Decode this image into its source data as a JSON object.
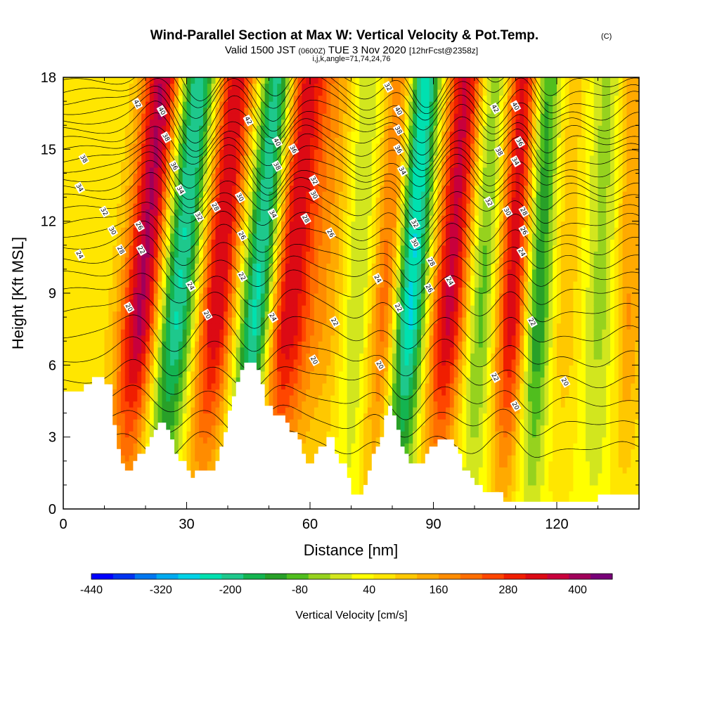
{
  "title": {
    "main": "Wind-Parallel Section at Max W: Vertical Velocity & Pot.Temp.",
    "main_suffix": "(C)",
    "valid_prefix": "Valid 1500 JST",
    "valid_z": "(0600Z)",
    "valid_date": "TUE 3 Nov 2020",
    "valid_fcst": "[12hrFcst@2358z]",
    "ijk": "i,j,k,angle=71,74,24,76"
  },
  "chart_data": {
    "type": "heatmap",
    "title": "Wind-Parallel Section at Max W: Vertical Velocity & Pot.Temp.",
    "xlabel": "Distance [nm]",
    "ylabel": "Height [Kft MSL]",
    "xlim": [
      0,
      140
    ],
    "ylim": [
      0,
      18
    ],
    "x_ticks": [
      0,
      30,
      60,
      90,
      120
    ],
    "x_tick_labels": [
      "0",
      "30",
      "60",
      "90",
      "120"
    ],
    "y_ticks": [
      0,
      3,
      6,
      9,
      12,
      15,
      18
    ],
    "y_tick_labels": [
      "0",
      "3",
      "6",
      "9",
      "12",
      "15",
      "18"
    ],
    "colorbar": {
      "title": "Vertical Velocity [cm/s]",
      "ticks": [
        -440,
        -320,
        -200,
        -80,
        40,
        160,
        280,
        400
      ],
      "tick_labels": [
        "-440",
        "-320",
        "-200",
        "-80",
        "40",
        "160",
        "280",
        "400"
      ],
      "range": [
        -440,
        460
      ],
      "colors": [
        "#0000ff",
        "#0033f0",
        "#0077f0",
        "#00aaf0",
        "#00d2e6",
        "#00e0b0",
        "#1ec88c",
        "#14b450",
        "#28a028",
        "#50be1e",
        "#96d21e",
        "#d2e61e",
        "#ffff00",
        "#ffe600",
        "#ffc800",
        "#ffaa00",
        "#ff8c00",
        "#ff6e00",
        "#ff4600",
        "#f01e00",
        "#dc0a14",
        "#c8003c",
        "#a0005a",
        "#780078"
      ]
    },
    "terrain_kft": [
      [
        0,
        4.9
      ],
      [
        5,
        4.9
      ],
      [
        5,
        5.2
      ],
      [
        7,
        5.2
      ],
      [
        7,
        5.5
      ],
      [
        10,
        5.5
      ],
      [
        10,
        5.2
      ],
      [
        12,
        5.2
      ],
      [
        12,
        3.5
      ],
      [
        13,
        3.5
      ],
      [
        13,
        2.5
      ],
      [
        14,
        2.5
      ],
      [
        14,
        1.9
      ],
      [
        15,
        1.9
      ],
      [
        15,
        1.6
      ],
      [
        17,
        1.6
      ],
      [
        17,
        2.0
      ],
      [
        18,
        2.0
      ],
      [
        18,
        2.3
      ],
      [
        20,
        2.3
      ],
      [
        20,
        2.6
      ],
      [
        21,
        2.6
      ],
      [
        21,
        3.0
      ],
      [
        22,
        3.0
      ],
      [
        22,
        3.3
      ],
      [
        23,
        3.3
      ],
      [
        23,
        3.6
      ],
      [
        25,
        3.6
      ],
      [
        25,
        3.3
      ],
      [
        26,
        3.3
      ],
      [
        26,
        2.9
      ],
      [
        27,
        2.9
      ],
      [
        27,
        2.3
      ],
      [
        28,
        2.3
      ],
      [
        28,
        2.0
      ],
      [
        30,
        2.0
      ],
      [
        30,
        1.6
      ],
      [
        31,
        1.6
      ],
      [
        31,
        1.3
      ],
      [
        32,
        1.3
      ],
      [
        32,
        1.6
      ],
      [
        37,
        1.6
      ],
      [
        37,
        2.0
      ],
      [
        38,
        2.0
      ],
      [
        38,
        2.6
      ],
      [
        39,
        2.6
      ],
      [
        39,
        3.2
      ],
      [
        40,
        3.2
      ],
      [
        40,
        4.1
      ],
      [
        41,
        4.1
      ],
      [
        41,
        4.7
      ],
      [
        42,
        4.7
      ],
      [
        42,
        5.3
      ],
      [
        43,
        5.3
      ],
      [
        43,
        5.8
      ],
      [
        44,
        5.8
      ],
      [
        44,
        6.1
      ],
      [
        47,
        6.1
      ],
      [
        47,
        5.8
      ],
      [
        48,
        5.8
      ],
      [
        48,
        5.2
      ],
      [
        49,
        5.2
      ],
      [
        49,
        4.3
      ],
      [
        51,
        4.3
      ],
      [
        51,
        3.9
      ],
      [
        54,
        3.9
      ],
      [
        54,
        3.6
      ],
      [
        55,
        3.6
      ],
      [
        55,
        3.2
      ],
      [
        57,
        3.2
      ],
      [
        57,
        2.9
      ],
      [
        58,
        2.9
      ],
      [
        58,
        2.3
      ],
      [
        59,
        2.3
      ],
      [
        59,
        1.9
      ],
      [
        61,
        1.9
      ],
      [
        61,
        2.3
      ],
      [
        62,
        2.3
      ],
      [
        62,
        2.6
      ],
      [
        64,
        2.6
      ],
      [
        64,
        3.0
      ],
      [
        66,
        3.0
      ],
      [
        66,
        2.3
      ],
      [
        67,
        2.3
      ],
      [
        67,
        1.9
      ],
      [
        69,
        1.9
      ],
      [
        69,
        1.3
      ],
      [
        70,
        1.3
      ],
      [
        70,
        0.6
      ],
      [
        71,
        0.6
      ],
      [
        71,
        0.6
      ],
      [
        73,
        0.6
      ],
      [
        73,
        1.0
      ],
      [
        74,
        1.0
      ],
      [
        74,
        1.6
      ],
      [
        75,
        1.6
      ],
      [
        75,
        2.3
      ],
      [
        76,
        2.3
      ],
      [
        76,
        2.6
      ],
      [
        77,
        2.6
      ],
      [
        77,
        3.0
      ],
      [
        78,
        3.0
      ],
      [
        78,
        3.9
      ],
      [
        79,
        3.9
      ],
      [
        79,
        4.3
      ],
      [
        80,
        4.3
      ],
      [
        80,
        3.9
      ],
      [
        81,
        3.9
      ],
      [
        81,
        3.3
      ],
      [
        82,
        3.3
      ],
      [
        82,
        2.6
      ],
      [
        83,
        2.6
      ],
      [
        83,
        2.3
      ],
      [
        84,
        2.3
      ],
      [
        84,
        1.9
      ],
      [
        88,
        1.9
      ],
      [
        88,
        2.3
      ],
      [
        89,
        2.3
      ],
      [
        89,
        2.6
      ],
      [
        91,
        2.6
      ],
      [
        91,
        2.9
      ],
      [
        95,
        2.9
      ],
      [
        95,
        2.6
      ],
      [
        96,
        2.6
      ],
      [
        96,
        2.3
      ],
      [
        97,
        2.3
      ],
      [
        97,
        1.6
      ],
      [
        99,
        1.6
      ],
      [
        99,
        1.3
      ],
      [
        100,
        1.3
      ],
      [
        100,
        1.0
      ],
      [
        102,
        1.0
      ],
      [
        102,
        0.7
      ],
      [
        107,
        0.7
      ],
      [
        107,
        0.3
      ],
      [
        125,
        0.3
      ],
      [
        125,
        0.3
      ],
      [
        130,
        0.3
      ],
      [
        130,
        0.6
      ],
      [
        140,
        0.6
      ]
    ],
    "bands": [
      {
        "x": 3,
        "w": 13,
        "amp": 30,
        "tilt": 0.25
      },
      {
        "x": 14.5,
        "w": 5,
        "amp": 360,
        "tilt": 0.55
      },
      {
        "x": 23,
        "w": 5,
        "amp": -280,
        "tilt": 0.55
      },
      {
        "x": 33,
        "w": 5,
        "amp": 320,
        "tilt": 0.5
      },
      {
        "x": 43,
        "w": 4.5,
        "amp": -360,
        "tilt": 0.55
      },
      {
        "x": 50,
        "w": 6,
        "amp": 320,
        "tilt": 0.45
      },
      {
        "x": 61,
        "w": 8,
        "amp": 110,
        "tilt": 0.4
      },
      {
        "x": 69,
        "w": 4,
        "amp": -120,
        "tilt": 0.25
      },
      {
        "x": 75,
        "w": 4,
        "amp": 240,
        "tilt": 0.45
      },
      {
        "x": 81,
        "w": 4.5,
        "amp": -340,
        "tilt": 0.35
      },
      {
        "x": 90,
        "w": 5,
        "amp": 330,
        "tilt": 0.45
      },
      {
        "x": 99,
        "w": 4,
        "amp": -150,
        "tilt": 0.3
      },
      {
        "x": 107,
        "w": 4.5,
        "amp": 330,
        "tilt": 0.3
      },
      {
        "x": 113,
        "w": 4,
        "amp": -260,
        "tilt": 0.25
      },
      {
        "x": 120,
        "w": 6,
        "amp": 90,
        "tilt": 0.15
      },
      {
        "x": 129,
        "w": 5,
        "amp": -90,
        "tilt": 0.2
      },
      {
        "x": 136,
        "w": 4,
        "amp": 140,
        "tilt": 0.15
      }
    ],
    "isentropes": {
      "base_kft": [
        2.5,
        3.5,
        4.4,
        5.3,
        6.2,
        7.2,
        8.2,
        9.0,
        9.7,
        10.3,
        10.9,
        11.4,
        11.9,
        12.4,
        12.9,
        13.3,
        13.7,
        14.1,
        14.5,
        14.9,
        15.3,
        15.7,
        16.1,
        16.5,
        16.9,
        17.3,
        17.7
      ]
    },
    "contour_labels": [
      {
        "text": "42",
        "x": 18,
        "y": 16.9
      },
      {
        "text": "40",
        "x": 24,
        "y": 16.6
      },
      {
        "text": "38",
        "x": 25,
        "y": 15.5
      },
      {
        "text": "36",
        "x": 27,
        "y": 14.3
      },
      {
        "text": "34",
        "x": 28.5,
        "y": 13.3
      },
      {
        "text": "32",
        "x": 33,
        "y": 12.2
      },
      {
        "text": "28",
        "x": 37,
        "y": 12.6
      },
      {
        "text": "38",
        "x": 5,
        "y": 14.6
      },
      {
        "text": "34",
        "x": 4,
        "y": 13.4
      },
      {
        "text": "32",
        "x": 10,
        "y": 12.4
      },
      {
        "text": "30",
        "x": 12,
        "y": 11.6
      },
      {
        "text": "28",
        "x": 14,
        "y": 10.8
      },
      {
        "text": "26",
        "x": 18.5,
        "y": 11.8
      },
      {
        "text": "22",
        "x": 19,
        "y": 10.8
      },
      {
        "text": "24",
        "x": 4,
        "y": 10.6
      },
      {
        "text": "20",
        "x": 16,
        "y": 8.4
      },
      {
        "text": "24",
        "x": 31,
        "y": 9.3
      },
      {
        "text": "20",
        "x": 35,
        "y": 8.1
      },
      {
        "text": "42",
        "x": 45,
        "y": 16.2
      },
      {
        "text": "30",
        "x": 43,
        "y": 13.0
      },
      {
        "text": "26",
        "x": 43.5,
        "y": 11.4
      },
      {
        "text": "22",
        "x": 43.5,
        "y": 9.7
      },
      {
        "text": "40",
        "x": 52,
        "y": 15.3
      },
      {
        "text": "36",
        "x": 56,
        "y": 15.0
      },
      {
        "text": "38",
        "x": 52,
        "y": 14.3
      },
      {
        "text": "34",
        "x": 51,
        "y": 12.3
      },
      {
        "text": "32",
        "x": 61,
        "y": 13.7
      },
      {
        "text": "30",
        "x": 61,
        "y": 13.1
      },
      {
        "text": "28",
        "x": 59,
        "y": 12.1
      },
      {
        "text": "26",
        "x": 65,
        "y": 11.5
      },
      {
        "text": "24",
        "x": 51,
        "y": 8.0
      },
      {
        "text": "22",
        "x": 66,
        "y": 7.8
      },
      {
        "text": "20",
        "x": 61,
        "y": 6.2
      },
      {
        "text": "20",
        "x": 77,
        "y": 6.0
      },
      {
        "text": "24",
        "x": 76.5,
        "y": 9.6
      },
      {
        "text": "22",
        "x": 81.5,
        "y": 8.4
      },
      {
        "text": "32",
        "x": 79,
        "y": 17.6
      },
      {
        "text": "40",
        "x": 81.5,
        "y": 16.6
      },
      {
        "text": "38",
        "x": 81.5,
        "y": 15.8
      },
      {
        "text": "36",
        "x": 81.5,
        "y": 15.0
      },
      {
        "text": "34",
        "x": 82.5,
        "y": 14.1
      },
      {
        "text": "32",
        "x": 85.5,
        "y": 11.9
      },
      {
        "text": "30",
        "x": 85.5,
        "y": 11.1
      },
      {
        "text": "28",
        "x": 89.5,
        "y": 10.3
      },
      {
        "text": "26",
        "x": 89,
        "y": 9.2
      },
      {
        "text": "24",
        "x": 94,
        "y": 9.5
      },
      {
        "text": "42",
        "x": 105,
        "y": 16.7
      },
      {
        "text": "40",
        "x": 110,
        "y": 16.8
      },
      {
        "text": "36",
        "x": 111,
        "y": 15.3
      },
      {
        "text": "38",
        "x": 106,
        "y": 14.9
      },
      {
        "text": "34",
        "x": 110,
        "y": 14.5
      },
      {
        "text": "32",
        "x": 103.5,
        "y": 12.8
      },
      {
        "text": "30",
        "x": 108,
        "y": 12.4
      },
      {
        "text": "28",
        "x": 112,
        "y": 12.4
      },
      {
        "text": "26",
        "x": 112,
        "y": 11.6
      },
      {
        "text": "24",
        "x": 111.5,
        "y": 10.7
      },
      {
        "text": "22",
        "x": 114,
        "y": 7.8
      },
      {
        "text": "22",
        "x": 105,
        "y": 5.5
      },
      {
        "text": "20",
        "x": 110,
        "y": 4.3
      },
      {
        "text": "20",
        "x": 122,
        "y": 5.3
      }
    ]
  }
}
